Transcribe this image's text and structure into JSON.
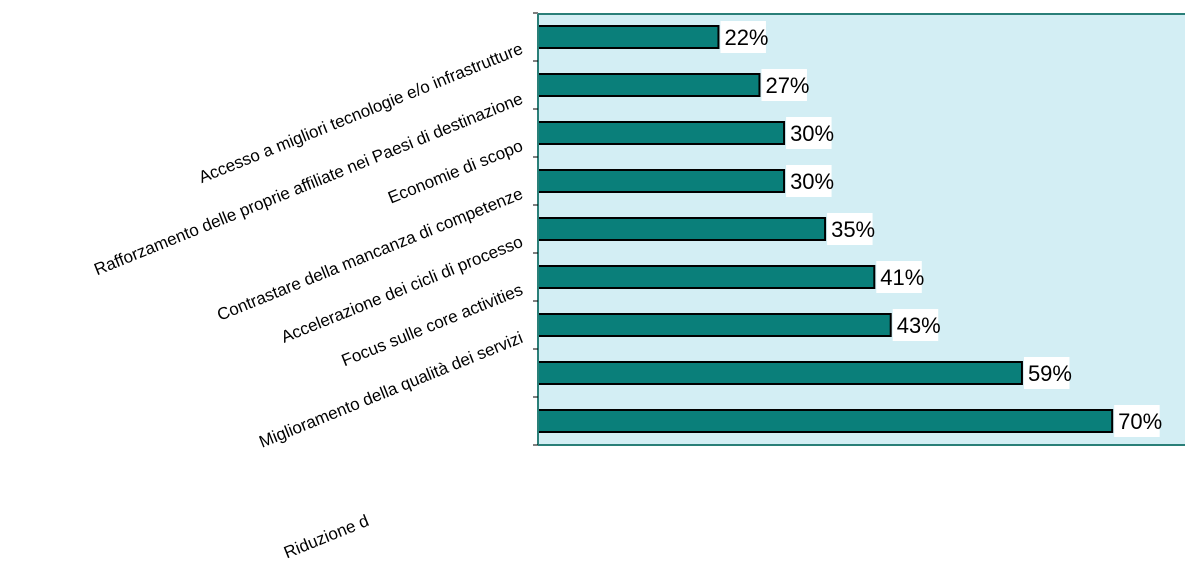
{
  "chart_data": {
    "type": "bar",
    "orientation": "horizontal",
    "categories": [
      "Accesso a migliori tecnologie e/o infrastrutture",
      "Rafforzamento delle proprie affiliate nei Paesi di destinazione",
      "Economie di scopo",
      "Contrastare della mancanza di competenze",
      "Accelerazione dei cicli di processo",
      "Focus sulle core activities",
      "Miglioramento della qualità dei servizi",
      "",
      "Riduzione d"
    ],
    "values": [
      22,
      27,
      30,
      30,
      35,
      41,
      43,
      59,
      70
    ],
    "value_labels": [
      "22%",
      "27%",
      "30%",
      "30%",
      "35%",
      "41%",
      "43%",
      "59%",
      "70%"
    ],
    "value_unit": "%",
    "xlim": [
      0,
      79
    ],
    "grid": false,
    "legend": "none",
    "colors": {
      "bar": "#0a7f7a",
      "bar_border": "#000000",
      "plot_background": "#d3eef4",
      "axis": "#2a7f78"
    }
  }
}
